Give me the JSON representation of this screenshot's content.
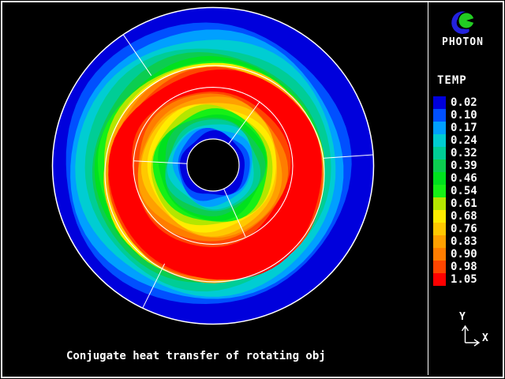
{
  "window": {
    "background": "#000000",
    "frame_color": "#ffffff"
  },
  "brand": {
    "name": "PHOTON",
    "logo_blue": "#2222dd",
    "logo_green": "#22cc22"
  },
  "legend": {
    "title": "TEMP",
    "entries": [
      {
        "value": "0.02"
      },
      {
        "value": "0.10"
      },
      {
        "value": "0.17"
      },
      {
        "value": "0.24"
      },
      {
        "value": "0.32"
      },
      {
        "value": "0.39"
      },
      {
        "value": "0.46"
      },
      {
        "value": "0.54"
      },
      {
        "value": "0.61"
      },
      {
        "value": "0.68"
      },
      {
        "value": "0.76"
      },
      {
        "value": "0.83"
      },
      {
        "value": "0.90"
      },
      {
        "value": "0.98"
      },
      {
        "value": "1.05"
      }
    ]
  },
  "axis_indicator": {
    "x_label": "X",
    "y_label": "Y"
  },
  "caption": "Conjugate heat transfer of rotating obj",
  "chart_data": {
    "type": "contour",
    "title": "Conjugate heat transfer of rotating obj",
    "variable": "TEMP",
    "levels": [
      0.02,
      0.1,
      0.17,
      0.24,
      0.32,
      0.39,
      0.46,
      0.54,
      0.61,
      0.68,
      0.76,
      0.83,
      0.9,
      0.98,
      1.05
    ],
    "palette": [
      "#0000dc",
      "#0050ff",
      "#00a0ff",
      "#00cdd2",
      "#00cd96",
      "#0ccd50",
      "#00e11e",
      "#16f016",
      "#b4e600",
      "#ffeb00",
      "#ffc800",
      "#ffa000",
      "#ff7d00",
      "#ff4600",
      "#ff0000"
    ],
    "legend_position": "right",
    "field_description": "Annular temperature field around a central hole: coldest (0.02) at the hole boundary and outer rim, hottest (1.05) in a ring at roughly 60% radius, displaced slightly left/down of center.",
    "geometry": {
      "center": [
        270,
        210
      ],
      "outer_rx": 203.5,
      "outer_ry": 200.5,
      "y_aspect": 0.985,
      "hole_center": [
        270,
        209
      ],
      "hole_r": 33,
      "mid_circle": {
        "center": [
          270,
          210
        ],
        "r": 101
      },
      "object_circle": {
        "center": [
          272,
          220
        ],
        "r": 139
      },
      "outer_spokes_deg": [
        4,
        124,
        244
      ],
      "inner_spokes_deg": [
        54,
        177,
        294
      ],
      "outer_bands": [
        [
          270,
          210,
          205
        ],
        [
          261,
          208,
          181
        ],
        [
          261.5,
          210,
          173
        ],
        [
          262,
          211,
          165
        ],
        [
          263,
          212,
          156
        ],
        [
          264,
          213,
          147.5
        ],
        [
          265.5,
          214.5,
          143
        ],
        [
          267,
          216,
          141
        ],
        [
          268.5,
          217,
          139.5
        ],
        [
          270,
          218,
          138.5
        ],
        [
          271,
          219,
          137.7
        ],
        [
          272,
          220,
          137
        ],
        [
          273,
          220.7,
          136.3
        ],
        [
          274,
          221.4,
          135.6
        ],
        [
          275,
          222,
          135
        ]
      ],
      "inner_bands": [
        [
          266,
          213,
          100
        ],
        [
          266.5,
          212.7,
          95
        ],
        [
          267,
          212.4,
          90.5
        ],
        [
          267.4,
          212.1,
          86
        ],
        [
          267.8,
          211.8,
          81.5
        ],
        [
          268.2,
          211.5,
          77
        ],
        [
          268.5,
          211.2,
          72.5
        ],
        [
          268.8,
          210.9,
          68
        ],
        [
          269.1,
          210.6,
          63.5
        ],
        [
          269.4,
          210.3,
          59
        ],
        [
          269.6,
          210,
          54.5
        ],
        [
          269.8,
          209.7,
          50
        ],
        [
          269.9,
          209.4,
          45.5
        ],
        [
          270,
          209,
          41
        ]
      ],
      "wobble": {
        "a1": 2.5,
        "f1": 3,
        "a2": 1.5,
        "f2": 5
      }
    }
  }
}
